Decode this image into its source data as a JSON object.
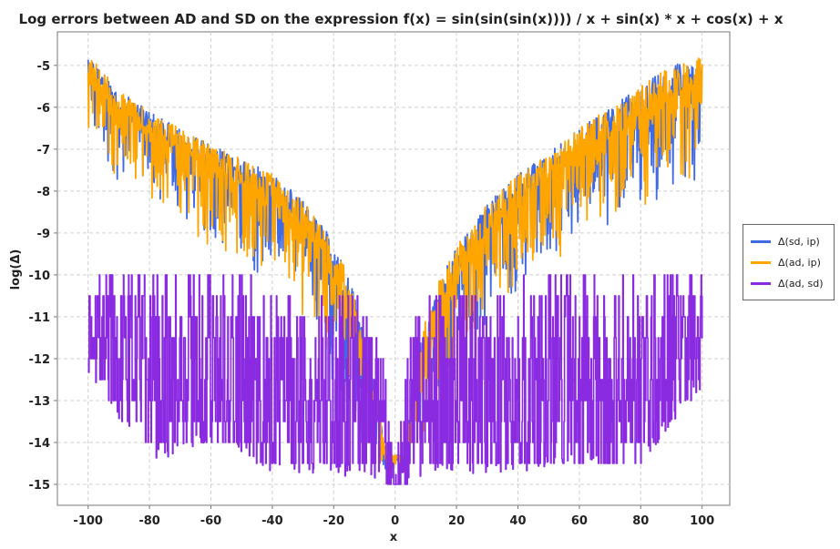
{
  "chart_data": {
    "type": "line",
    "title": "Log errors between AD and SD on the expression f(x) = sin(sin(sin(x)))) / x + sin(x) * x + cos(x) + x",
    "xlabel": "x",
    "ylabel": "log(Δ)",
    "xlim": [
      -110,
      109
    ],
    "ylim": [
      -15.5,
      -4.2
    ],
    "x_ticks": [
      -100,
      -80,
      -60,
      -40,
      -20,
      0,
      20,
      40,
      60,
      80,
      100
    ],
    "y_ticks": [
      -5,
      -6,
      -7,
      -8,
      -9,
      -10,
      -11,
      -12,
      -13,
      -14,
      -15
    ],
    "grid": true,
    "legend_position": "right",
    "series": [
      {
        "name": "Δ(sd, ip)",
        "color": "#4169e1",
        "x": [
          -100,
          -90,
          -80,
          -70,
          -60,
          -50,
          -40,
          -30,
          -20,
          -15,
          -10,
          -6,
          -4,
          -3,
          -2,
          -1,
          1,
          2,
          3,
          4,
          6,
          10,
          15,
          20,
          30,
          40,
          50,
          60,
          70,
          80,
          90,
          100
        ],
        "upper": [
          -4.7,
          -5.6,
          -6.1,
          -6.5,
          -6.9,
          -7.2,
          -7.6,
          -8.2,
          -9.2,
          -10.0,
          -11.5,
          -12.8,
          -13.8,
          -14.3,
          -14.3,
          -14.3,
          -14.3,
          -14.3,
          -14.3,
          -13.6,
          -12.5,
          -11.0,
          -10.0,
          -9.3,
          -8.3,
          -7.6,
          -7.1,
          -6.5,
          -6.0,
          -5.5,
          -5.0,
          -4.8
        ],
        "lower": [
          -6.9,
          -8.3,
          -8.6,
          -9.2,
          -9.8,
          -10.2,
          -10.7,
          -11.5,
          -13.5,
          -14.0,
          -14.6,
          -14.8,
          -14.9,
          -14.7,
          -14.7,
          -14.7,
          -14.7,
          -14.7,
          -14.7,
          -14.8,
          -14.6,
          -14.5,
          -13.8,
          -12.8,
          -11.7,
          -11.0,
          -10.3,
          -9.8,
          -9.3,
          -8.9,
          -8.7,
          -8.3
        ]
      },
      {
        "name": "Δ(ad, ip)",
        "color": "#ffa500",
        "x": [
          -100,
          -90,
          -80,
          -70,
          -60,
          -50,
          -40,
          -30,
          -20,
          -15,
          -10,
          -6,
          -4,
          -3,
          -2,
          -1,
          1,
          2,
          3,
          4,
          6,
          10,
          15,
          20,
          30,
          40,
          50,
          60,
          70,
          80,
          90,
          100
        ],
        "upper": [
          -4.7,
          -5.6,
          -6.1,
          -6.5,
          -6.9,
          -7.2,
          -7.6,
          -8.2,
          -9.2,
          -10.0,
          -11.5,
          -12.8,
          -13.8,
          -14.3,
          -14.3,
          -14.3,
          -14.3,
          -14.3,
          -14.3,
          -13.6,
          -12.5,
          -11.0,
          -10.0,
          -9.3,
          -8.3,
          -7.6,
          -7.1,
          -6.5,
          -6.0,
          -5.5,
          -5.0,
          -4.8
        ],
        "lower": [
          -6.9,
          -8.3,
          -8.6,
          -9.2,
          -9.8,
          -10.2,
          -10.7,
          -11.5,
          -13.5,
          -14.0,
          -14.6,
          -14.8,
          -14.9,
          -14.7,
          -14.7,
          -14.7,
          -14.7,
          -14.7,
          -14.7,
          -14.8,
          -14.6,
          -14.5,
          -13.8,
          -12.8,
          -11.7,
          -11.0,
          -10.3,
          -9.8,
          -9.3,
          -8.9,
          -8.7,
          -8.3
        ]
      },
      {
        "name": "Δ(ad, sd)",
        "color": "#8a2be2",
        "x": [
          -100,
          -80,
          -60,
          -40,
          -20,
          -10,
          -5,
          0,
          5,
          10,
          20,
          40,
          60,
          80,
          100
        ],
        "upper": [
          -9.9,
          -9.7,
          -10.0,
          -10.0,
          -10.2,
          -10.5,
          -11.0,
          -14.5,
          -11.0,
          -10.5,
          -10.2,
          -10.0,
          -10.0,
          -9.8,
          -9.7
        ],
        "lower": [
          -12.4,
          -14.5,
          -14.0,
          -14.7,
          -14.8,
          -14.8,
          -15.0,
          -15.0,
          -15.0,
          -14.8,
          -14.8,
          -14.7,
          -14.5,
          -14.5,
          -12.7
        ]
      }
    ]
  }
}
